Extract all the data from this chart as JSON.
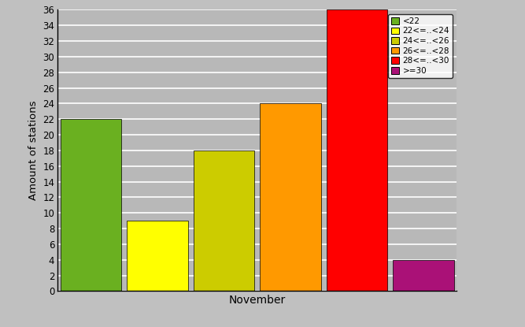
{
  "categories": [
    "<22",
    "22<=..<24",
    "24<=..<26",
    "26<=..<28",
    "28<=..<30",
    ">=30"
  ],
  "values": [
    22,
    9,
    18,
    24,
    36,
    4
  ],
  "bar_colors": [
    "#6ab020",
    "#ffff00",
    "#cccc00",
    "#ff9900",
    "#ff0000",
    "#aa1177"
  ],
  "xlabel": "November",
  "ylabel": "Amount of stations",
  "ylim": [
    0,
    36
  ],
  "yticks": [
    0,
    2,
    4,
    6,
    8,
    10,
    12,
    14,
    16,
    18,
    20,
    22,
    24,
    26,
    28,
    30,
    32,
    34,
    36
  ],
  "background_color": "#c0c0c0",
  "plot_bg_color": "#b8b8b8",
  "legend_labels": [
    "<22",
    "22<=..<24",
    "24<=..<26",
    "26<=..<28",
    "28<=..<30",
    ">=30"
  ],
  "bar_width": 0.92,
  "grid_color": "#d8d8d8",
  "spine_color": "#000000"
}
